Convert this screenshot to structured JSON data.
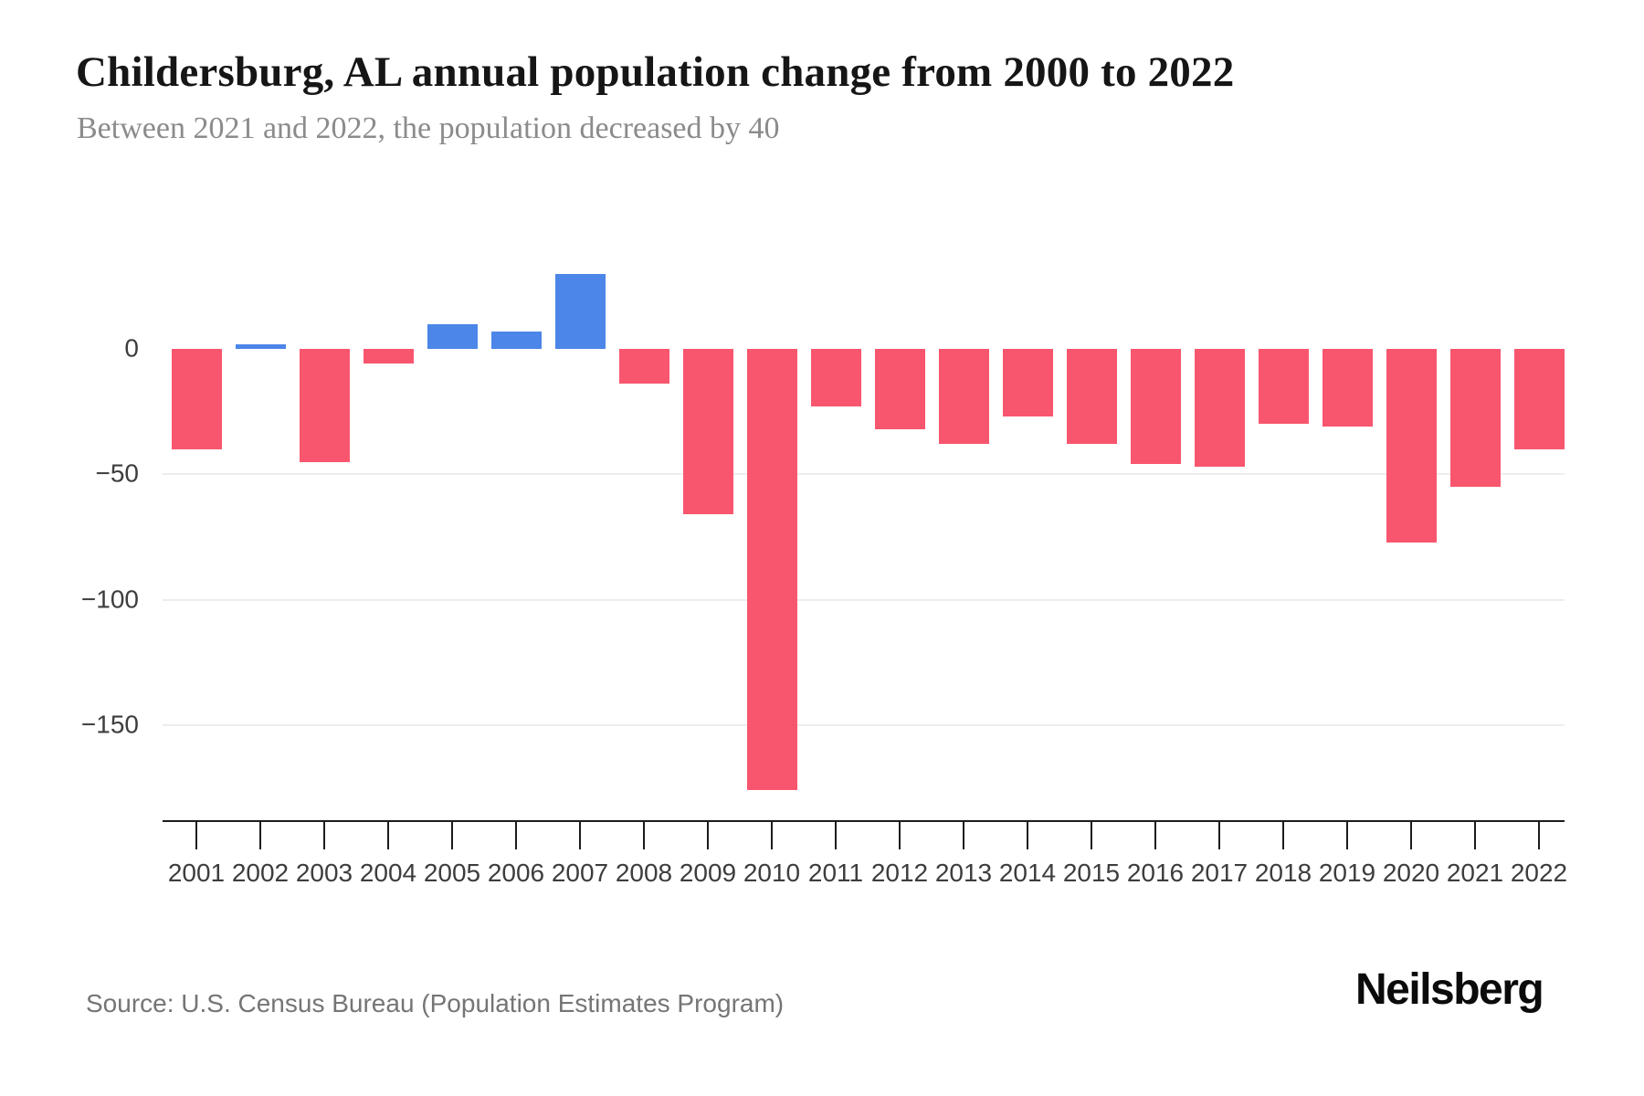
{
  "header": {
    "title": "Childersburg, AL annual population change from 2000 to 2022",
    "subtitle": "Between 2021 and 2022, the population decreased by 40"
  },
  "chart_data": {
    "type": "bar",
    "title": "Childersburg, AL annual population change from 2000 to 2022",
    "subtitle": "Between 2021 and 2022, the population decreased by 40",
    "xlabel": "",
    "ylabel": "",
    "categories": [
      "2001",
      "2002",
      "2003",
      "2004",
      "2005",
      "2006",
      "2007",
      "2008",
      "2009",
      "2010",
      "2011",
      "2012",
      "2013",
      "2014",
      "2015",
      "2016",
      "2017",
      "2018",
      "2019",
      "2020",
      "2021",
      "2022"
    ],
    "values": [
      -40,
      2,
      -45,
      -6,
      10,
      7,
      30,
      -14,
      -66,
      -176,
      -23,
      -32,
      -38,
      -27,
      -38,
      -46,
      -47,
      -30,
      -31,
      -77,
      -55,
      -40
    ],
    "ylim": [
      -190,
      35
    ],
    "grid": "horizontal-light",
    "legend": "none",
    "yticks": [
      {
        "label": "0",
        "value": 0,
        "gridline": false
      },
      {
        "label": "−50",
        "value": -50,
        "gridline": true
      },
      {
        "label": "−100",
        "value": -100,
        "gridline": true
      },
      {
        "label": "−150",
        "value": -150,
        "gridline": true
      }
    ],
    "colors": {
      "positive": "#4b86e8",
      "negative": "#f8566e"
    }
  },
  "footer": {
    "source": "Source: U.S. Census Bureau (Population Estimates Program)",
    "logo": "Neilsberg"
  }
}
